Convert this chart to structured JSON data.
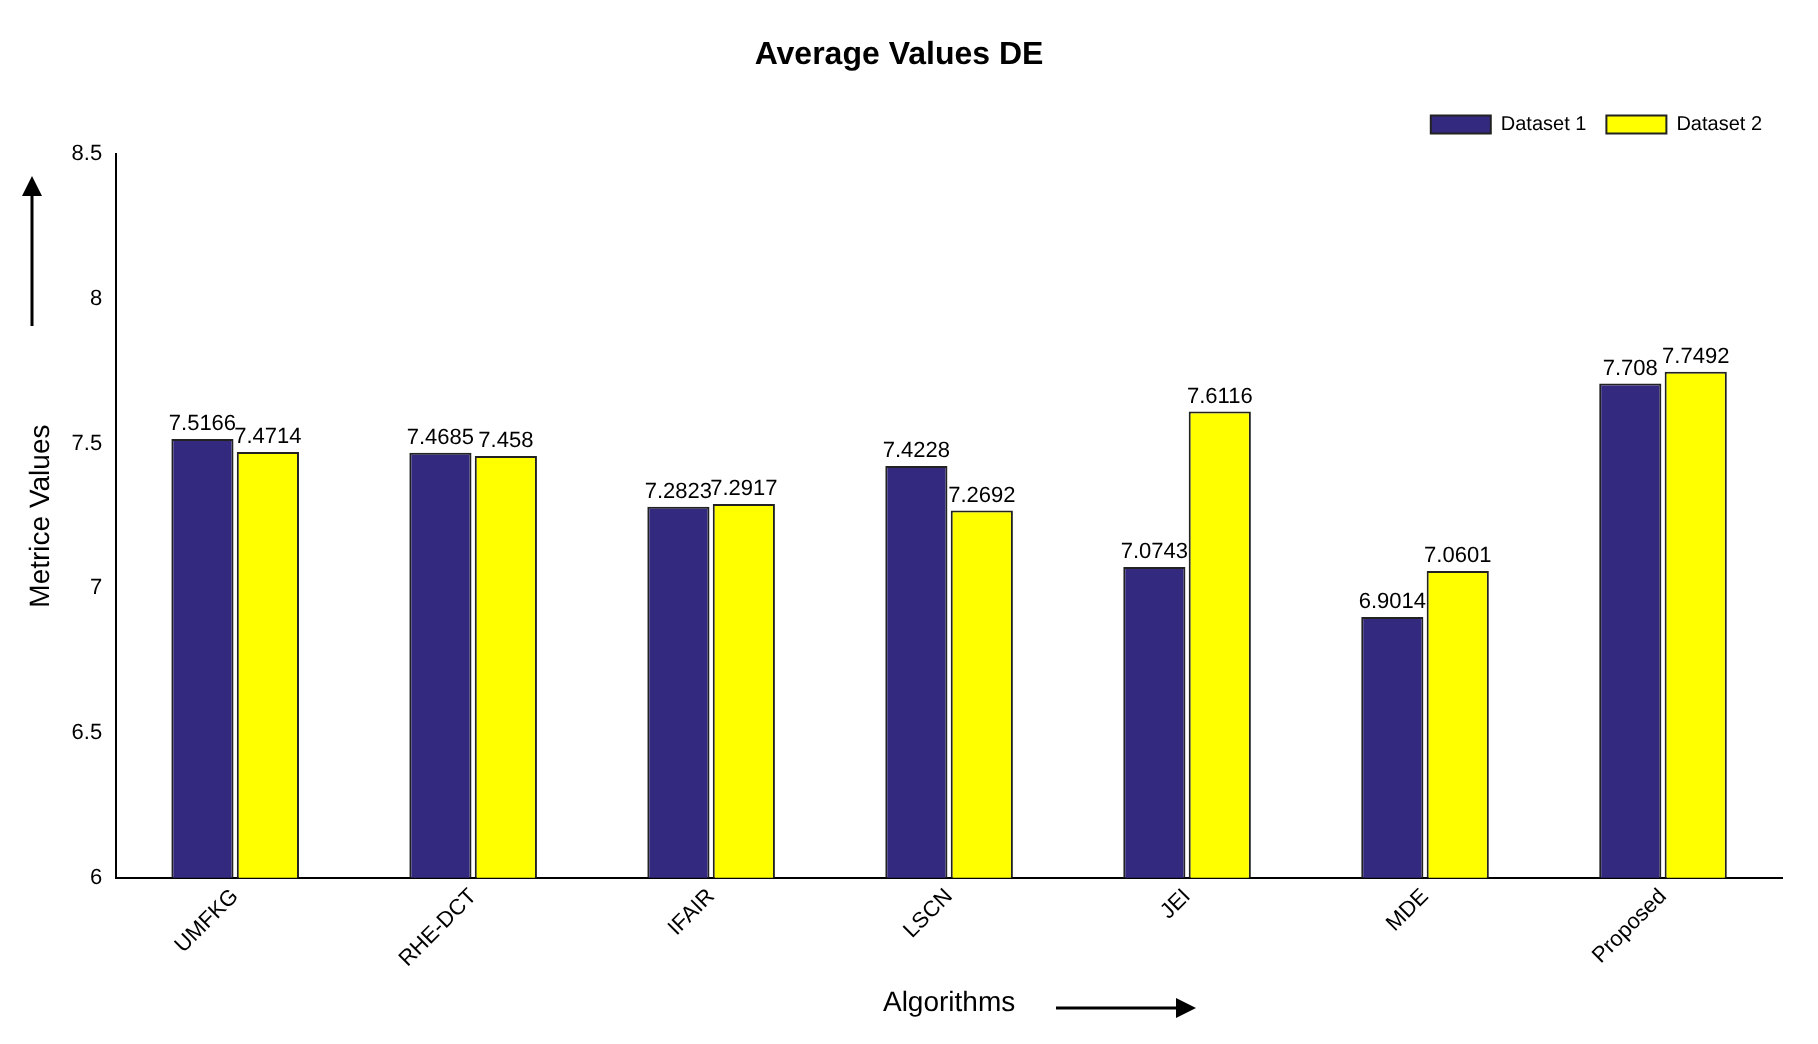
{
  "chart_data": {
    "type": "bar",
    "title": "Average Values DE",
    "xlabel": "Algorithms",
    "ylabel": "Metrice Values",
    "categories": [
      "UMFKG",
      "RHE-DCT",
      "IFAIR",
      "LSCN",
      "JEI",
      "MDE",
      "Proposed"
    ],
    "series": [
      {
        "name": "Dataset 1",
        "color": "#332a80",
        "values": [
          7.5166,
          7.4685,
          7.2823,
          7.4228,
          7.0743,
          6.9014,
          7.708
        ]
      },
      {
        "name": "Dataset 2",
        "color": "#ffff00",
        "values": [
          7.4714,
          7.458,
          7.2917,
          7.2692,
          7.6116,
          7.0601,
          7.7492
        ]
      }
    ],
    "ylim": [
      6,
      8.5
    ],
    "yticks": [
      6,
      6.5,
      7,
      7.5,
      8,
      8.5
    ],
    "grid": false,
    "legend": "top right",
    "data_labels": true
  }
}
